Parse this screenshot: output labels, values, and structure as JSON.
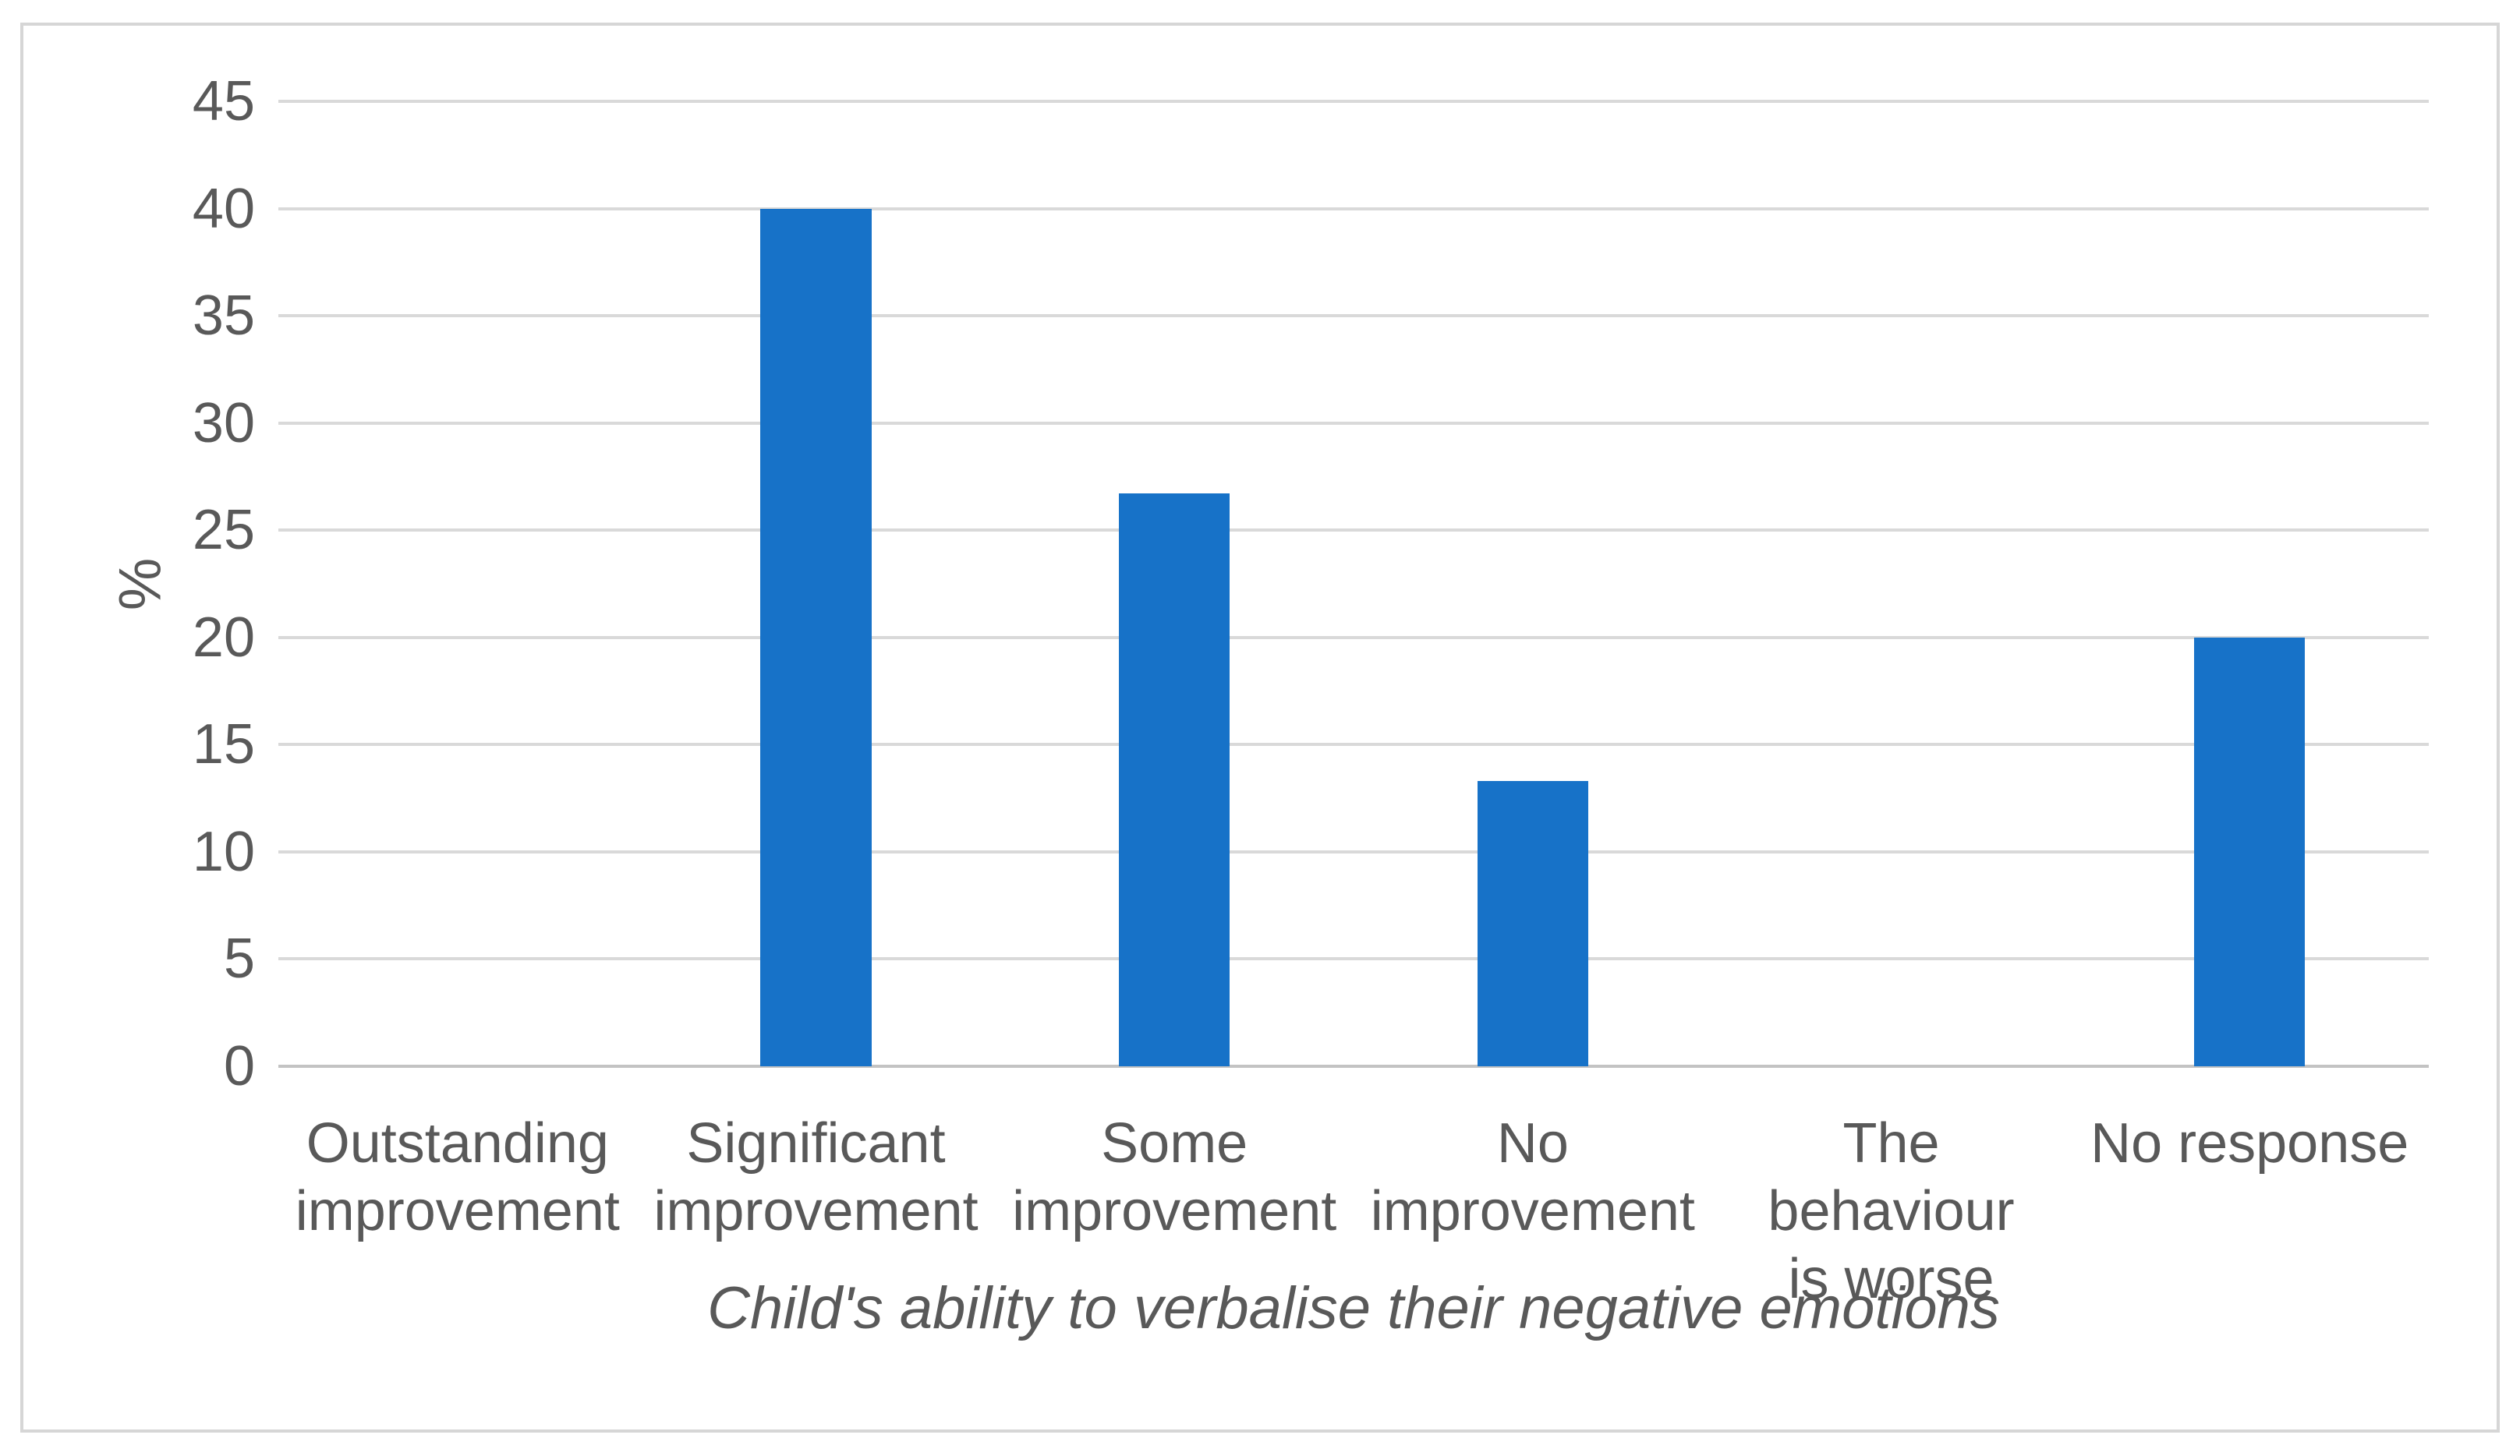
{
  "chart_data": {
    "type": "bar",
    "title": "",
    "categories": [
      "Outstanding\nimprovement",
      "Significant\nimprovement",
      "Some\nimprovement",
      "No\nimprovement",
      "The behaviour\nis worse",
      "No response"
    ],
    "values": [
      0,
      40,
      26.7,
      13.3,
      0,
      20
    ],
    "xlabel": "Child's ability to verbalise their negative emotions",
    "ylabel": "%",
    "ylim": [
      0,
      45
    ],
    "yticks": [
      0,
      5,
      10,
      15,
      20,
      25,
      30,
      35,
      40,
      45
    ],
    "grid": true,
    "legend_position": "none",
    "colors": {
      "bar": "#1772c8",
      "gridline": "#d9d9d9",
      "axis_line": "#c3c3c3",
      "text": "#595959",
      "frame_border": "#d6d6d6",
      "background": "#ffffff"
    }
  }
}
